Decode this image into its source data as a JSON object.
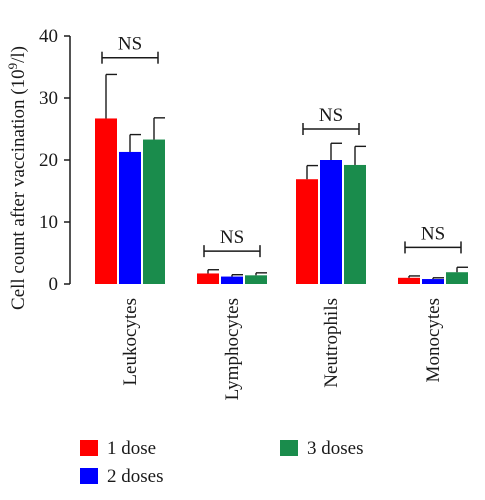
{
  "chart_data": {
    "type": "bar",
    "ylabel": "Cell count after vaccination (10^9/l)",
    "ylabel_base": "Cell count after vaccination (10",
    "ylabel_sup": "9",
    "ylabel_tail": "/l)",
    "ylim": [
      0,
      40
    ],
    "yticks": [
      0,
      10,
      20,
      30,
      40
    ],
    "categories": [
      "Leukocytes",
      "Lymphocytes",
      "Neutrophils",
      "Monocytes"
    ],
    "series": [
      {
        "name": "1 dose",
        "color": "#ff0000",
        "values": [
          26.7,
          1.7,
          16.9,
          1.0
        ],
        "errors": [
          7.1,
          0.6,
          2.2,
          0.3
        ]
      },
      {
        "name": "2 doses",
        "color": "#0000ff",
        "values": [
          21.3,
          1.2,
          20.0,
          0.8
        ],
        "errors": [
          2.8,
          0.3,
          2.7,
          0.2
        ]
      },
      {
        "name": "3 doses",
        "color": "#1a8c4c",
        "values": [
          23.3,
          1.4,
          19.2,
          1.9
        ],
        "errors": [
          3.5,
          0.4,
          3.0,
          0.8
        ]
      }
    ],
    "significance": [
      {
        "category": "Leukocytes",
        "label": "NS",
        "y": 36.5
      },
      {
        "category": "Lymphocytes",
        "label": "NS",
        "y": 5.3
      },
      {
        "category": "Neutrophils",
        "label": "NS",
        "y": 25.0
      },
      {
        "category": "Monocytes",
        "label": "NS",
        "y": 5.9
      }
    ],
    "legend": {
      "placement": "bottom"
    },
    "grid": false
  }
}
